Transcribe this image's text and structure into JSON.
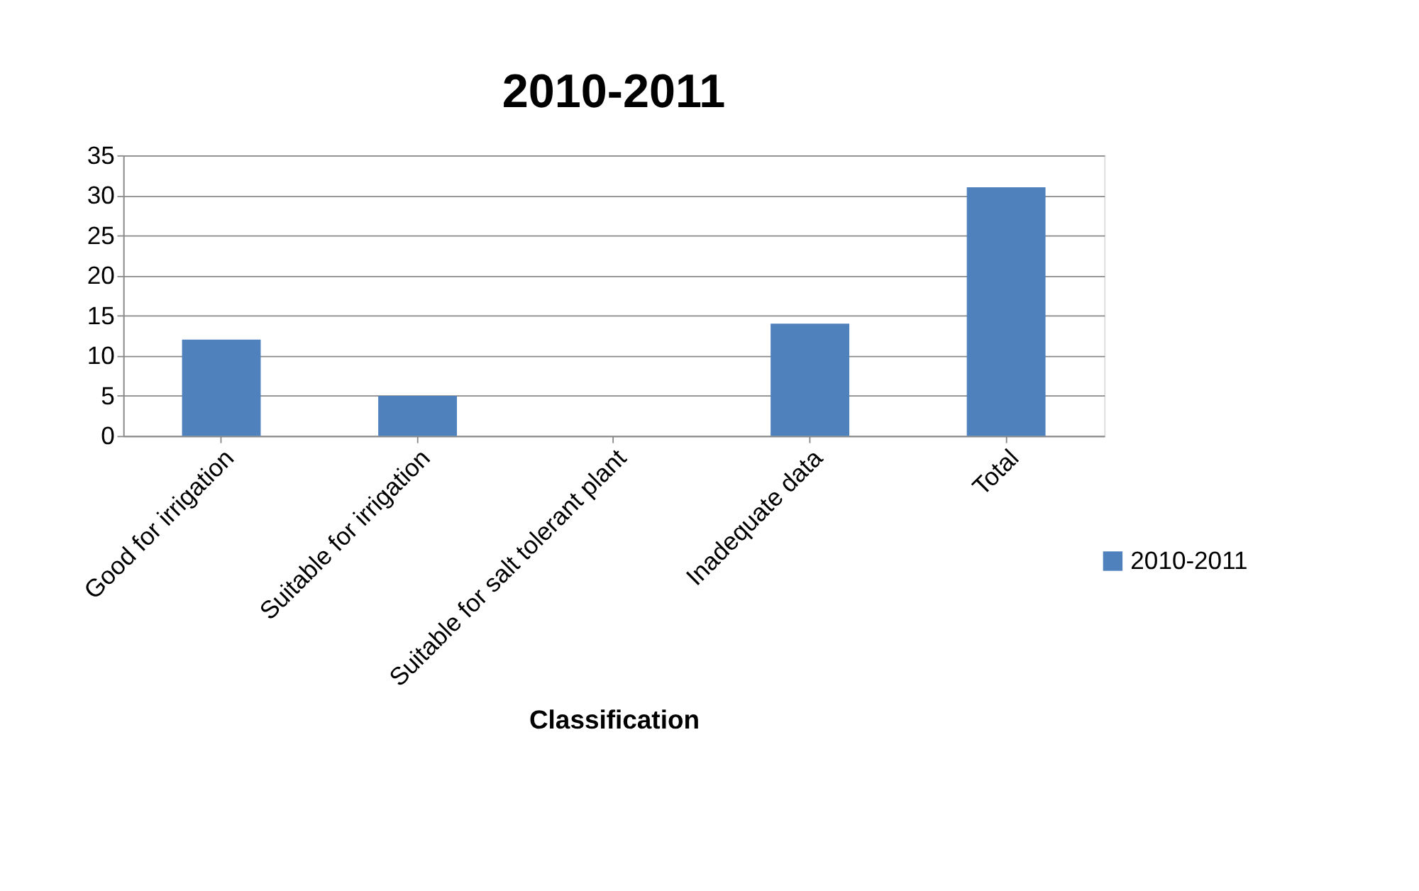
{
  "chart_data": {
    "type": "bar",
    "title": "2010-2011",
    "xlabel": "Classification",
    "categories": [
      "Good for irrigation",
      "Suitable for irrigation",
      "Suitable for salt tolerant plant",
      "Inadequate data",
      "Total"
    ],
    "series": [
      {
        "name": "2010-2011",
        "color": "#4f81bd",
        "values": [
          12,
          5,
          0,
          14,
          31
        ]
      }
    ],
    "ylim": [
      0,
      35
    ],
    "yticks": [
      0,
      5,
      10,
      15,
      20,
      25,
      30,
      35
    ],
    "grid": "y",
    "legend": "bottom right"
  }
}
